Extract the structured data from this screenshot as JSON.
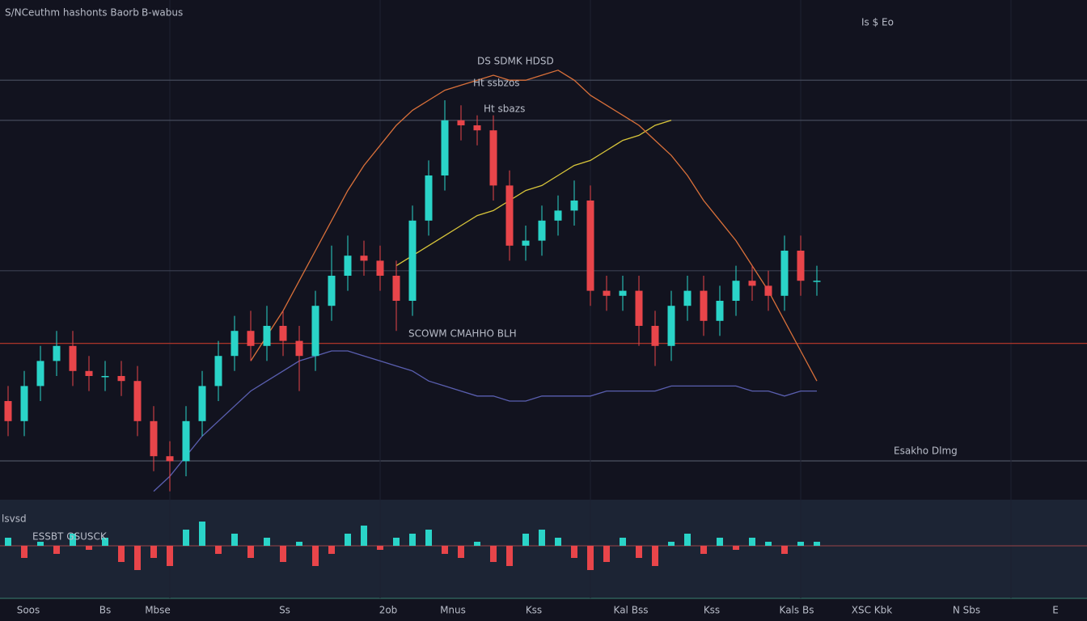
{
  "header": {
    "title": "S/NCeuthm hashonts Baorb",
    "subtitle": "B-wabus"
  },
  "annotations": [
    "Is $ Eo",
    "DS SDMK HDSD",
    "Ht ssbzos",
    "Ht sbazs",
    "SCOWM CMAHHO BLH",
    "Esakho Dlmg",
    "lsvsd",
    "ESSBT GSUSCK"
  ],
  "x_axis_labels": [
    "Soos",
    "Bs",
    "Mbse",
    "Ss",
    "2ob",
    "Mnus",
    "Kss",
    "Kal Bss",
    "Kss",
    "Kals Bs",
    "XSC Kbk",
    "N Sbs",
    "E"
  ],
  "chart_data": [
    {
      "type": "candlestick",
      "ylim": [
        0,
        100
      ],
      "up_color": "#2ad4c8",
      "down_color": "#e8454a",
      "open": [
        20,
        16,
        23,
        28,
        31,
        26,
        25,
        25,
        24,
        16,
        9,
        8,
        16,
        23,
        29,
        34,
        31,
        35,
        32,
        29,
        39,
        45,
        49,
        48,
        45,
        40,
        56,
        65,
        76,
        75,
        74,
        63,
        51,
        52,
        56,
        58,
        60,
        42,
        41,
        42,
        35,
        31,
        39,
        42,
        36,
        40,
        44,
        43,
        41,
        50,
        44
      ],
      "high": [
        23,
        26,
        31,
        34,
        34,
        29,
        28,
        28,
        27,
        19,
        12,
        19,
        26,
        32,
        37,
        38,
        39,
        38,
        35,
        42,
        51,
        53,
        52,
        51,
        48,
        59,
        68,
        80,
        79,
        77,
        77,
        66,
        55,
        59,
        61,
        64,
        63,
        45,
        45,
        45,
        38,
        42,
        45,
        45,
        43,
        47,
        47,
        46,
        53,
        53,
        47
      ],
      "low": [
        13,
        13,
        20,
        25,
        23,
        22,
        22,
        21,
        13,
        6,
        2,
        5,
        13,
        20,
        26,
        28,
        28,
        29,
        22,
        26,
        36,
        42,
        45,
        42,
        34,
        37,
        53,
        62,
        72,
        71,
        60,
        48,
        48,
        49,
        53,
        55,
        39,
        38,
        38,
        31,
        27,
        28,
        36,
        33,
        33,
        37,
        40,
        38,
        38,
        41,
        41
      ],
      "close": [
        16,
        23,
        28,
        31,
        26,
        25,
        25,
        24,
        16,
        9,
        8,
        16,
        23,
        29,
        34,
        31,
        35,
        32,
        29,
        39,
        45,
        49,
        48,
        45,
        40,
        56,
        65,
        76,
        75,
        74,
        63,
        51,
        52,
        56,
        58,
        60,
        42,
        41,
        42,
        35,
        31,
        39,
        42,
        36,
        40,
        44,
        43,
        41,
        50,
        44,
        44
      ],
      "overlays": [
        {
          "color": "#d8c53a",
          "values": [
            null,
            null,
            null,
            null,
            null,
            null,
            null,
            null,
            null,
            null,
            null,
            null,
            null,
            null,
            null,
            null,
            null,
            null,
            null,
            null,
            null,
            null,
            null,
            null,
            47,
            49,
            51,
            53,
            55,
            57,
            58,
            60,
            62,
            63,
            65,
            67,
            68,
            70,
            72,
            73,
            75,
            76,
            null,
            null,
            null,
            null,
            null,
            null,
            null,
            null,
            null
          ]
        },
        {
          "color": "#d9703a",
          "values": [
            null,
            null,
            null,
            null,
            null,
            null,
            null,
            null,
            null,
            null,
            null,
            null,
            null,
            null,
            null,
            28,
            33,
            38,
            44,
            50,
            56,
            62,
            67,
            71,
            75,
            78,
            80,
            82,
            83,
            84,
            85,
            84,
            84,
            85,
            86,
            84,
            81,
            79,
            77,
            75,
            72,
            69,
            65,
            60,
            56,
            52,
            47,
            42,
            36,
            30,
            24
          ]
        },
        {
          "color": "#5a5fb0",
          "values": [
            null,
            null,
            null,
            null,
            null,
            null,
            null,
            null,
            null,
            2,
            5,
            9,
            13,
            16,
            19,
            22,
            24,
            26,
            28,
            29,
            30,
            30,
            29,
            28,
            27,
            26,
            24,
            23,
            22,
            21,
            21,
            20,
            20,
            21,
            21,
            21,
            21,
            22,
            22,
            22,
            22,
            23,
            23,
            23,
            23,
            23,
            22,
            22,
            21,
            22,
            22
          ]
        }
      ],
      "levels": [
        {
          "value": 84,
          "color": "#4a5060"
        },
        {
          "value": 76,
          "color": "#4a5060"
        },
        {
          "value": 46,
          "color": "#3a4050"
        },
        {
          "value": 31.5,
          "color": "#c0392b"
        }
      ]
    },
    {
      "type": "bar",
      "ylim": [
        -13,
        11
      ],
      "up_color": "#2ad4c8",
      "down_color": "#e8454a",
      "values": [
        2,
        -3,
        1,
        -2,
        3,
        -1,
        2,
        -4,
        -6,
        -3,
        -5,
        4,
        6,
        -2,
        3,
        -3,
        2,
        -4,
        1,
        -5,
        -2,
        3,
        5,
        -1,
        2,
        3,
        4,
        -2,
        -3,
        1,
        -4,
        -5,
        3,
        4,
        2,
        -3,
        -6,
        -4,
        2,
        -3,
        -5,
        1,
        3,
        -2,
        2,
        -1,
        2,
        1,
        -2,
        1,
        1
      ]
    }
  ]
}
